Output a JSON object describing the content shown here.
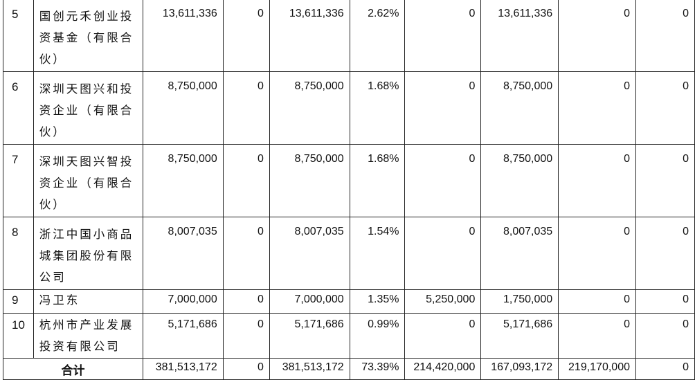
{
  "rows": [
    {
      "idx": "5",
      "name": "国创元禾创业投资基金（有限合伙）",
      "c1": "13,611,336",
      "c2": "0",
      "c3": "13,611,336",
      "c4": "2.62%",
      "c5": "0",
      "c6": "13,611,336",
      "c7": "0",
      "c8": "0"
    },
    {
      "idx": "6",
      "name": "深圳天图兴和投资企业（有限合伙）",
      "c1": "8,750,000",
      "c2": "0",
      "c3": "8,750,000",
      "c4": "1.68%",
      "c5": "0",
      "c6": "8,750,000",
      "c7": "0",
      "c8": "0"
    },
    {
      "idx": "7",
      "name": "深圳天图兴智投资企业（有限合伙）",
      "c1": "8,750,000",
      "c2": "0",
      "c3": "8,750,000",
      "c4": "1.68%",
      "c5": "0",
      "c6": "8,750,000",
      "c7": "0",
      "c8": "0"
    },
    {
      "idx": "8",
      "name": "浙江中国小商品城集团股份有限公司",
      "c1": "8,007,035",
      "c2": "0",
      "c3": "8,007,035",
      "c4": "1.54%",
      "c5": "0",
      "c6": "8,007,035",
      "c7": "0",
      "c8": "0"
    },
    {
      "idx": "9",
      "name": "冯卫东",
      "c1": "7,000,000",
      "c2": "0",
      "c3": "7,000,000",
      "c4": "1.35%",
      "c5": "5,250,000",
      "c6": "1,750,000",
      "c7": "0",
      "c8": "0"
    },
    {
      "idx": "10",
      "name": "杭州市产业发展投资有限公司",
      "c1": "5,171,686",
      "c2": "0",
      "c3": "5,171,686",
      "c4": "0.99%",
      "c5": "0",
      "c6": "5,171,686",
      "c7": "0",
      "c8": "0"
    }
  ],
  "total": {
    "label": "合计",
    "c1": "381,513,172",
    "c2": "0",
    "c3": "381,513,172",
    "c4": "73.39%",
    "c5": "214,420,000",
    "c6": "167,093,172",
    "c7": "219,170,000",
    "c8": "0"
  }
}
